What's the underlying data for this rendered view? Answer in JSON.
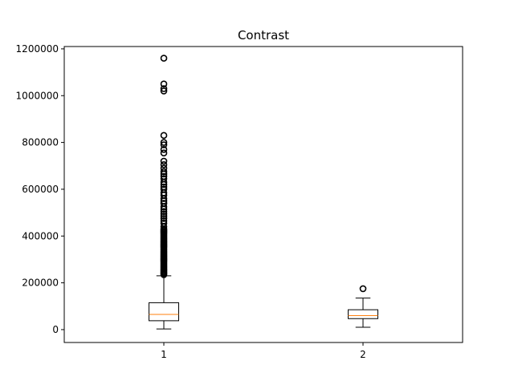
{
  "chart_data": {
    "type": "boxplot",
    "title": "Contrast",
    "xlabel": "",
    "ylabel": "",
    "categories": [
      "1",
      "2"
    ],
    "ylim": [
      -55000,
      1210000
    ],
    "yticks": [
      0,
      200000,
      400000,
      600000,
      800000,
      1000000,
      1200000
    ],
    "ytick_labels": [
      "0",
      "200000",
      "400000",
      "600000",
      "800000",
      "1000000",
      "1200000"
    ],
    "grid": false,
    "colors": {
      "box": "#000000",
      "median": "#ff7f0e",
      "frame": "#000000"
    },
    "boxes": [
      {
        "name": "1",
        "whisker_low": 3000,
        "q1": 38000,
        "median": 65000,
        "q3": 115000,
        "whisker_high": 230000,
        "outliers": [
          235000,
          240000,
          245000,
          250000,
          255000,
          260000,
          265000,
          270000,
          275000,
          280000,
          285000,
          290000,
          295000,
          300000,
          305000,
          310000,
          315000,
          320000,
          325000,
          330000,
          335000,
          340000,
          345000,
          350000,
          355000,
          360000,
          365000,
          370000,
          375000,
          380000,
          385000,
          390000,
          395000,
          400000,
          405000,
          410000,
          415000,
          420000,
          425000,
          430000,
          440000,
          455000,
          465000,
          475000,
          485000,
          495000,
          505000,
          515000,
          525000,
          540000,
          550000,
          560000,
          575000,
          585000,
          600000,
          610000,
          620000,
          630000,
          645000,
          655000,
          665000,
          675000,
          690000,
          705000,
          720000,
          755000,
          770000,
          790000,
          800000,
          830000,
          1020000,
          1030000,
          1050000,
          1160000
        ]
      },
      {
        "name": "2",
        "whisker_low": 10000,
        "q1": 47000,
        "median": 60000,
        "q3": 85000,
        "whisker_high": 135000,
        "outliers": [
          175000
        ]
      }
    ]
  }
}
